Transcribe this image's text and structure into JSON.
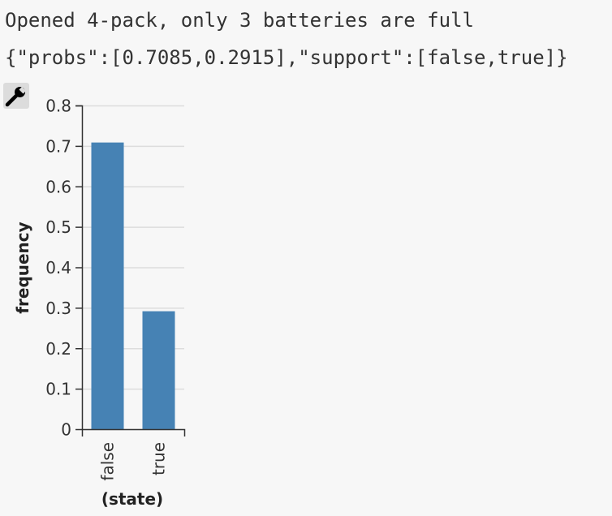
{
  "output": {
    "title_line": "Opened 4-pack, only 3 batteries are full",
    "json_line": "{\"probs\":[0.7085,0.2915],\"support\":[false,true]}"
  },
  "toolbar": {
    "wrench_icon": "wrench-icon"
  },
  "colors": {
    "bar": "#4682b4",
    "grid": "#dddddd",
    "axis": "#333333"
  },
  "chart_data": {
    "type": "bar",
    "categories": [
      "false",
      "true"
    ],
    "values": [
      0.7085,
      0.2915
    ],
    "xlabel": "(state)",
    "ylabel": "frequency",
    "ylim": [
      0,
      0.8
    ],
    "yticks": [
      "0",
      "0.1",
      "0.2",
      "0.3",
      "0.4",
      "0.5",
      "0.6",
      "0.7",
      "0.8"
    ],
    "grid": true
  }
}
